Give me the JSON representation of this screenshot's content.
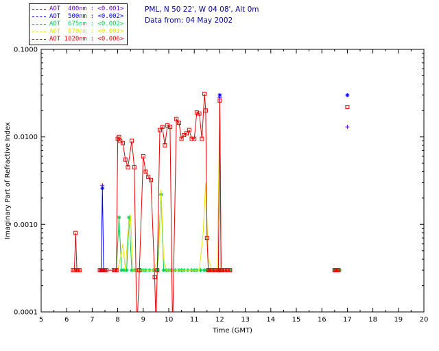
{
  "header": {
    "station": "PML, N 50 22', W 04 08', Alt 0m",
    "date_line": "Data from: 04 May 2002",
    "text_color": "#000099"
  },
  "legend": {
    "entries": [
      {
        "label": "AOT  400nm : <0.001>",
        "color": "#6600cc"
      },
      {
        "label": "AOT  500nm : <0.002>",
        "color": "#0000ff"
      },
      {
        "label": "AOT  675nm : <0.002>",
        "color": "#00cc55"
      },
      {
        "label": "AOT  870nm : <0.003>",
        "color": "#e3e300"
      },
      {
        "label": "AOT 1020nm : <0.006>",
        "color": "#e60000"
      }
    ]
  },
  "chart_data": {
    "type": "line",
    "title": "",
    "xlabel": "Time (GMT)",
    "ylabel": "Imaginary Part of Refractive Index",
    "xlim": [
      5,
      20
    ],
    "ylim": [
      0.0001,
      0.1
    ],
    "yscale": "log",
    "grid": false,
    "xticks": [
      5,
      6,
      7,
      8,
      9,
      10,
      11,
      12,
      13,
      14,
      15,
      16,
      17,
      18,
      19,
      20
    ],
    "xtick_labels": [
      "5",
      "6",
      "7",
      "8",
      "9",
      "10",
      "11",
      "12",
      "13",
      "14",
      "15",
      "16",
      "17",
      "18",
      "19",
      "20"
    ],
    "yticks": [
      0.0001,
      0.001,
      0.01,
      0.1
    ],
    "ytick_labels": [
      "0.0001",
      "0.0010",
      "0.0100",
      "0.1000"
    ],
    "series": [
      {
        "name": "AOT 400nm",
        "color": "#6600cc",
        "marker": "plus",
        "line": "none",
        "points": [
          [
            7.4,
            0.0028
          ],
          [
            12.0,
            0.028
          ],
          [
            17.0,
            0.013
          ]
        ]
      },
      {
        "name": "AOT 500nm",
        "color": "#0000ff",
        "marker": "asterisk",
        "line": "solid",
        "points": [
          [
            7.35,
            0.0003
          ],
          [
            7.4,
            0.0026
          ],
          [
            7.45,
            0.0003
          ],
          [
            11.95,
            0.0003
          ],
          [
            12.0,
            0.03
          ],
          [
            12.05,
            0.0003
          ],
          [
            16.5,
            0.0003
          ],
          [
            16.6,
            0.0003
          ],
          [
            17.0,
            0.03
          ]
        ]
      },
      {
        "name": "AOT 675nm",
        "color": "#00cc55",
        "marker": "asterisk",
        "line": "solid",
        "points": [
          [
            7.95,
            0.0003
          ],
          [
            8.05,
            0.0012
          ],
          [
            8.15,
            0.0003
          ],
          [
            8.25,
            0.0003
          ],
          [
            8.35,
            0.0003
          ],
          [
            8.45,
            0.0012
          ],
          [
            8.55,
            0.0003
          ],
          [
            8.65,
            0.0003
          ],
          [
            8.75,
            0.0003
          ],
          [
            8.9,
            0.0003
          ],
          [
            9.0,
            0.0003
          ],
          [
            9.1,
            0.0003
          ],
          [
            9.25,
            0.0003
          ],
          [
            9.4,
            0.0003
          ],
          [
            9.55,
            0.0003
          ],
          [
            9.7,
            0.0022
          ],
          [
            9.8,
            0.0003
          ],
          [
            9.9,
            0.0003
          ],
          [
            10.0,
            0.0003
          ],
          [
            10.1,
            0.0003
          ],
          [
            10.25,
            0.0003
          ],
          [
            10.4,
            0.0003
          ],
          [
            10.5,
            0.0003
          ],
          [
            10.6,
            0.0003
          ],
          [
            10.75,
            0.0003
          ],
          [
            10.9,
            0.0003
          ],
          [
            11.0,
            0.0003
          ],
          [
            11.1,
            0.0003
          ],
          [
            11.25,
            0.0003
          ],
          [
            11.4,
            0.0003
          ],
          [
            11.5,
            0.0003
          ],
          [
            11.6,
            0.0003
          ],
          [
            11.75,
            0.0003
          ],
          [
            11.9,
            0.0003
          ],
          [
            12.0,
            0.0003
          ],
          [
            12.1,
            0.0003
          ],
          [
            12.25,
            0.0003
          ],
          [
            12.4,
            0.0003
          ],
          [
            16.5,
            0.0003
          ],
          [
            16.6,
            0.0003
          ],
          [
            16.7,
            0.0003
          ]
        ]
      },
      {
        "name": "AOT 870nm",
        "color": "#e3e300",
        "marker": "none",
        "line": "solid",
        "points": [
          [
            7.9,
            0.0003
          ],
          [
            8.0,
            0.0003
          ],
          [
            8.1,
            0.0004
          ],
          [
            8.2,
            0.0006
          ],
          [
            8.3,
            0.0003
          ],
          [
            8.4,
            0.0008
          ],
          [
            8.5,
            0.0013
          ],
          [
            8.6,
            0.0003
          ],
          [
            8.7,
            0.0003
          ],
          [
            8.8,
            0.0003
          ],
          [
            9.0,
            0.0003
          ],
          [
            9.2,
            0.0003
          ],
          [
            9.4,
            0.0003
          ],
          [
            9.6,
            0.0004
          ],
          [
            9.7,
            0.0025
          ],
          [
            9.8,
            0.0004
          ],
          [
            9.9,
            0.0003
          ],
          [
            10.0,
            0.0003
          ],
          [
            10.2,
            0.0003
          ],
          [
            10.4,
            0.0003
          ],
          [
            10.6,
            0.0003
          ],
          [
            10.8,
            0.0003
          ],
          [
            11.0,
            0.0003
          ],
          [
            11.2,
            0.0003
          ],
          [
            11.35,
            0.0008
          ],
          [
            11.45,
            0.003
          ],
          [
            11.55,
            0.0004
          ],
          [
            11.7,
            0.0003
          ],
          [
            11.9,
            0.0003
          ],
          [
            12.0,
            0.024
          ],
          [
            12.05,
            0.0003
          ],
          [
            12.2,
            0.0003
          ],
          [
            12.3,
            0.0003
          ],
          [
            12.4,
            0.0003
          ],
          [
            16.5,
            0.0003
          ],
          [
            16.55,
            0.0003
          ],
          [
            16.6,
            0.0003
          ],
          [
            16.65,
            0.0003
          ]
        ]
      },
      {
        "name": "AOT 1020nm",
        "color": "#e60000",
        "marker": "square",
        "line": "solid",
        "points": [
          [
            6.25,
            0.0003
          ],
          [
            6.3,
            0.0003
          ],
          [
            6.35,
            0.0008
          ],
          [
            6.4,
            0.0003
          ],
          [
            6.45,
            0.0003
          ],
          [
            6.5,
            0.0003
          ],
          [
            7.3,
            0.0003
          ],
          [
            7.35,
            0.0003
          ],
          [
            7.4,
            0.0003
          ],
          [
            7.45,
            0.0003
          ],
          [
            7.5,
            0.0003
          ],
          [
            7.55,
            0.0003
          ],
          [
            7.85,
            0.0003
          ],
          [
            7.9,
            0.0003
          ],
          [
            7.95,
            0.0003
          ],
          [
            8.0,
            0.0095
          ],
          [
            8.05,
            0.01
          ],
          [
            8.1,
            0.009
          ],
          [
            8.2,
            0.0085
          ],
          [
            8.3,
            0.0055
          ],
          [
            8.4,
            0.0045
          ],
          [
            8.55,
            0.009
          ],
          [
            8.65,
            0.0045
          ],
          [
            8.75,
            6e-05
          ],
          [
            8.85,
            0.0003
          ],
          [
            9.0,
            0.006
          ],
          [
            9.1,
            0.004
          ],
          [
            9.2,
            0.0035
          ],
          [
            9.3,
            0.0032
          ],
          [
            9.45,
            0.00025
          ],
          [
            9.5,
            7e-05
          ],
          [
            9.55,
            0.0003
          ],
          [
            9.65,
            0.012
          ],
          [
            9.75,
            0.013
          ],
          [
            9.85,
            0.008
          ],
          [
            9.95,
            0.0135
          ],
          [
            10.05,
            0.013
          ],
          [
            10.15,
            6e-05
          ],
          [
            10.3,
            0.016
          ],
          [
            10.4,
            0.0145
          ],
          [
            10.5,
            0.0095
          ],
          [
            10.6,
            0.0105
          ],
          [
            10.7,
            0.011
          ],
          [
            10.8,
            0.012
          ],
          [
            10.9,
            0.0095
          ],
          [
            11.0,
            0.0095
          ],
          [
            11.1,
            0.019
          ],
          [
            11.2,
            0.0185
          ],
          [
            11.3,
            0.0095
          ],
          [
            11.4,
            0.031
          ],
          [
            11.45,
            0.02
          ],
          [
            11.5,
            0.0007
          ],
          [
            11.55,
            0.0003
          ],
          [
            11.6,
            0.0003
          ],
          [
            11.65,
            0.0003
          ],
          [
            11.7,
            0.0003
          ],
          [
            11.85,
            0.0003
          ],
          [
            11.9,
            0.0003
          ],
          [
            11.95,
            0.0003
          ],
          [
            12.0,
            0.026
          ],
          [
            12.05,
            0.0003
          ],
          [
            12.1,
            0.0003
          ],
          [
            12.2,
            0.0003
          ],
          [
            12.3,
            0.0003
          ],
          [
            12.4,
            0.0003
          ],
          [
            16.5,
            0.0003
          ],
          [
            16.55,
            0.0003
          ],
          [
            16.6,
            0.0003
          ],
          [
            16.65,
            0.0003
          ],
          [
            17.0,
            0.022
          ]
        ]
      }
    ]
  }
}
